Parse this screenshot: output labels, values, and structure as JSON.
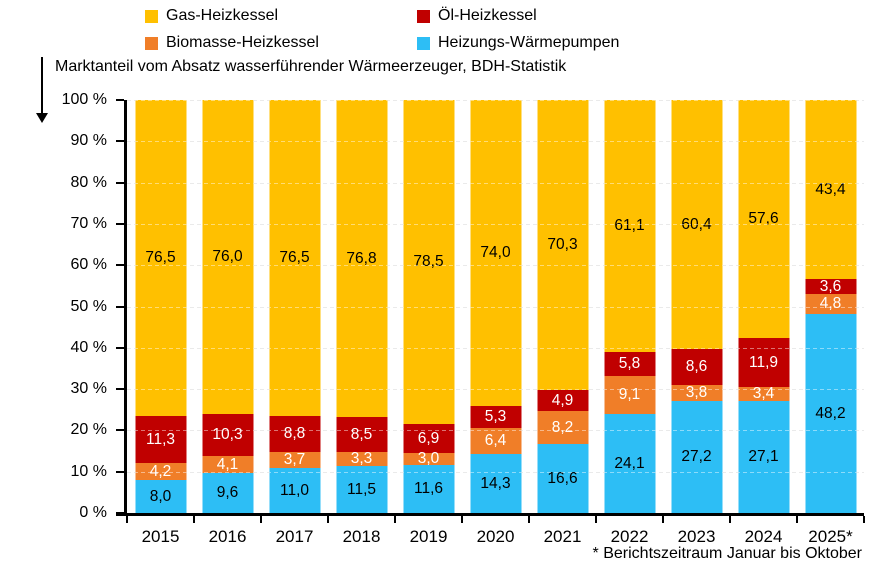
{
  "header": {
    "title": "Marktanteil vom Absatz wasserführender Wärmeerzeuger, BDH-Statistik",
    "footnote": "* Berichtszeitraum Januar bis Oktober"
  },
  "legend": {
    "items": [
      {
        "label": "Gas-Heizkessel",
        "color": "#FFC000"
      },
      {
        "label": "Öl-Heizkessel",
        "color": "#C00000"
      },
      {
        "label": "Biomasse-Heizkessel",
        "color": "#F07E28"
      },
      {
        "label": "Heizungs-Wärmepumpen",
        "color": "#2DBEF5"
      }
    ]
  },
  "axis": {
    "y_tick_labels": [
      "100 %",
      "90 %",
      "80 %",
      "70 %",
      "60 %",
      "50 %",
      "40 %",
      "30 %",
      "20 %",
      "10 %",
      "0 %"
    ]
  },
  "chart_data": {
    "type": "bar",
    "stacked": true,
    "title": "Marktanteil vom Absatz wasserführender Wärmeerzeuger, BDH-Statistik",
    "categories": [
      "2015",
      "2016",
      "2017",
      "2018",
      "2019",
      "2020",
      "2021",
      "2022",
      "2023",
      "2024",
      "2025*"
    ],
    "series": [
      {
        "name": "Heizungs-Wärmepumpen",
        "color": "#2DBEF5",
        "label_color": "#000000",
        "values": [
          8.0,
          9.6,
          11.0,
          11.5,
          11.6,
          14.3,
          16.6,
          24.1,
          27.2,
          27.1,
          48.2
        ]
      },
      {
        "name": "Biomasse-Heizkessel",
        "color": "#F07E28",
        "label_color": "#FFFFFF",
        "values": [
          4.2,
          4.1,
          3.7,
          3.3,
          3.0,
          6.4,
          8.2,
          9.1,
          3.8,
          3.4,
          4.8
        ]
      },
      {
        "name": "Öl-Heizkessel",
        "color": "#C00000",
        "label_color": "#FFFFFF",
        "values": [
          11.3,
          10.3,
          8.8,
          8.5,
          6.9,
          5.3,
          4.9,
          5.8,
          8.6,
          11.9,
          3.6
        ]
      },
      {
        "name": "Gas-Heizkessel",
        "color": "#FFC000",
        "label_color": "#000000",
        "values": [
          76.5,
          76.0,
          76.5,
          76.8,
          78.5,
          74.0,
          70.3,
          61.1,
          60.4,
          57.6,
          43.4
        ]
      }
    ],
    "ylim": [
      0,
      100
    ],
    "ytick_step": 10,
    "grid": "horizontal-dashed",
    "legend_position": "top",
    "decimal_separator": ",",
    "footnote": "* Berichtszeitraum Januar bis Oktober"
  }
}
